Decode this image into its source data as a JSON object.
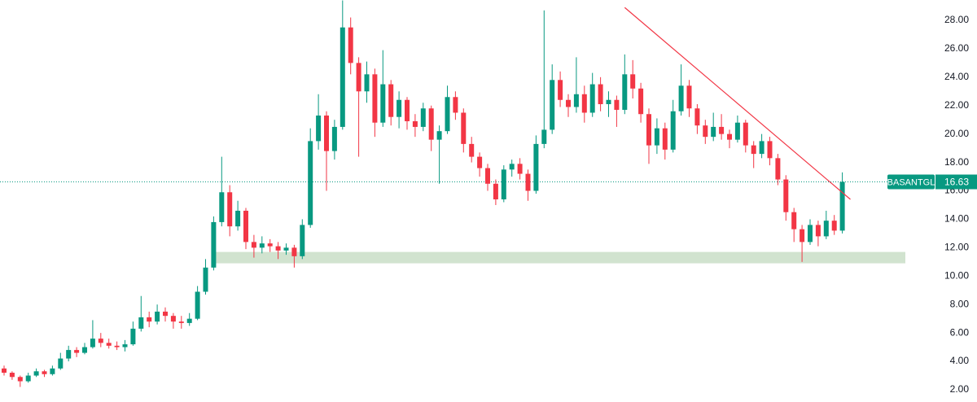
{
  "chart_data": {
    "type": "candlestick",
    "symbol": "BASANTGL",
    "last_price": 16.63,
    "up_color": "#089981",
    "down_color": "#f23645",
    "ylim": [
      1.14,
      29.43
    ],
    "yticks": [
      {
        "value": 2,
        "label": "2.00"
      },
      {
        "value": 4,
        "label": "4.00"
      },
      {
        "value": 6,
        "label": "6.00"
      },
      {
        "value": 8,
        "label": "8.00"
      },
      {
        "value": 10,
        "label": "10.00"
      },
      {
        "value": 12,
        "label": "12.00"
      },
      {
        "value": 14,
        "label": "14.00"
      },
      {
        "value": 16,
        "label": "16.00"
      },
      {
        "value": 18,
        "label": "18.00"
      },
      {
        "value": 20,
        "label": "20.00"
      },
      {
        "value": 22,
        "label": "22.00"
      },
      {
        "value": 24,
        "label": "24.00"
      },
      {
        "value": 26,
        "label": "26.00"
      },
      {
        "value": 28,
        "label": "28.00"
      }
    ],
    "ohlc": [
      [
        3.5,
        3.7,
        3.0,
        3.2
      ],
      [
        3.2,
        3.3,
        2.7,
        2.9
      ],
      [
        2.9,
        3.0,
        2.2,
        2.6
      ],
      [
        2.6,
        3.2,
        2.5,
        3.0
      ],
      [
        3.0,
        3.5,
        2.9,
        3.3
      ],
      [
        3.3,
        3.4,
        2.9,
        3.1
      ],
      [
        3.1,
        3.7,
        3.0,
        3.5
      ],
      [
        3.5,
        4.6,
        3.4,
        4.2
      ],
      [
        4.2,
        5.1,
        4.0,
        4.8
      ],
      [
        4.8,
        5.0,
        4.3,
        4.6
      ],
      [
        4.6,
        5.3,
        4.5,
        5.0
      ],
      [
        5.0,
        6.9,
        4.9,
        5.6
      ],
      [
        5.6,
        6.0,
        5.0,
        5.3
      ],
      [
        5.3,
        5.6,
        4.9,
        5.1
      ],
      [
        5.1,
        5.4,
        4.8,
        5.0
      ],
      [
        5.0,
        5.5,
        4.7,
        5.2
      ],
      [
        5.2,
        6.8,
        5.1,
        6.3
      ],
      [
        6.3,
        8.6,
        6.1,
        7.1
      ],
      [
        7.1,
        7.5,
        6.4,
        6.8
      ],
      [
        6.8,
        8.0,
        6.6,
        7.5
      ],
      [
        7.5,
        7.8,
        6.8,
        7.2
      ],
      [
        7.2,
        7.4,
        6.3,
        6.8
      ],
      [
        6.8,
        7.2,
        6.3,
        6.7
      ],
      [
        6.7,
        7.4,
        6.5,
        7.0
      ],
      [
        7.0,
        9.3,
        6.9,
        8.9
      ],
      [
        8.9,
        11.2,
        8.7,
        10.6
      ],
      [
        10.6,
        14.2,
        10.4,
        13.8
      ],
      [
        13.8,
        18.4,
        13.5,
        15.9
      ],
      [
        15.9,
        16.4,
        12.8,
        13.5
      ],
      [
        13.5,
        15.3,
        13.2,
        14.6
      ],
      [
        14.6,
        14.8,
        11.9,
        12.4
      ],
      [
        12.4,
        12.9,
        11.3,
        12.0
      ],
      [
        12.0,
        12.8,
        11.6,
        12.3
      ],
      [
        12.3,
        12.6,
        11.7,
        12.1
      ],
      [
        12.1,
        12.4,
        11.2,
        11.8
      ],
      [
        11.8,
        12.3,
        11.5,
        12.0
      ],
      [
        12.0,
        12.2,
        10.6,
        11.4
      ],
      [
        11.4,
        14.0,
        11.2,
        13.6
      ],
      [
        13.6,
        20.4,
        13.4,
        19.5
      ],
      [
        19.5,
        22.8,
        18.9,
        21.3
      ],
      [
        21.3,
        21.6,
        16.0,
        18.8
      ],
      [
        18.8,
        21.0,
        18.2,
        20.5
      ],
      [
        20.5,
        29.4,
        20.3,
        27.5
      ],
      [
        27.5,
        28.2,
        24.2,
        25.0
      ],
      [
        25.0,
        25.4,
        18.4,
        23.0
      ],
      [
        23.0,
        25.1,
        22.2,
        24.2
      ],
      [
        24.2,
        24.6,
        19.8,
        20.8
      ],
      [
        20.8,
        25.9,
        20.5,
        23.5
      ],
      [
        23.5,
        23.8,
        20.6,
        21.2
      ],
      [
        21.2,
        23.0,
        20.4,
        22.4
      ],
      [
        22.4,
        22.6,
        20.3,
        20.9
      ],
      [
        20.9,
        21.4,
        19.8,
        20.5
      ],
      [
        20.5,
        22.2,
        20.2,
        21.8
      ],
      [
        21.8,
        22.0,
        18.8,
        19.6
      ],
      [
        19.6,
        20.6,
        16.5,
        20.2
      ],
      [
        20.2,
        23.4,
        20.0,
        22.6
      ],
      [
        22.6,
        23.0,
        21.0,
        21.5
      ],
      [
        21.5,
        21.8,
        18.7,
        19.3
      ],
      [
        19.3,
        19.8,
        18.0,
        18.4
      ],
      [
        18.4,
        18.7,
        17.0,
        17.6
      ],
      [
        17.6,
        17.9,
        16.0,
        16.5
      ],
      [
        16.5,
        16.8,
        15.0,
        15.4
      ],
      [
        15.4,
        17.8,
        15.2,
        17.5
      ],
      [
        17.5,
        18.2,
        17.0,
        17.9
      ],
      [
        17.9,
        18.3,
        16.8,
        17.2
      ],
      [
        17.2,
        17.5,
        15.3,
        16.0
      ],
      [
        16.0,
        19.9,
        15.8,
        19.3
      ],
      [
        19.3,
        28.7,
        19.0,
        20.3
      ],
      [
        20.3,
        24.9,
        20.0,
        23.8
      ],
      [
        23.8,
        24.4,
        21.9,
        22.4
      ],
      [
        22.4,
        22.8,
        21.2,
        21.9
      ],
      [
        21.9,
        25.4,
        21.5,
        22.8
      ],
      [
        22.8,
        23.4,
        20.8,
        21.5
      ],
      [
        21.5,
        24.3,
        21.2,
        23.5
      ],
      [
        23.5,
        24.0,
        21.6,
        22.1
      ],
      [
        22.1,
        23.0,
        21.2,
        22.4
      ],
      [
        22.4,
        22.7,
        20.5,
        21.7
      ],
      [
        21.7,
        25.6,
        21.4,
        24.2
      ],
      [
        24.2,
        25.2,
        22.5,
        23.2
      ],
      [
        23.2,
        23.6,
        20.8,
        21.4
      ],
      [
        21.4,
        21.8,
        17.9,
        19.2
      ],
      [
        19.2,
        21.1,
        18.6,
        20.4
      ],
      [
        20.4,
        20.8,
        18.2,
        18.9
      ],
      [
        18.9,
        22.4,
        18.7,
        21.6
      ],
      [
        21.6,
        24.9,
        21.3,
        23.4
      ],
      [
        23.4,
        23.8,
        21.2,
        21.8
      ],
      [
        21.8,
        22.1,
        20.0,
        20.6
      ],
      [
        20.6,
        21.0,
        19.3,
        19.8
      ],
      [
        19.8,
        21.5,
        19.5,
        20.5
      ],
      [
        20.5,
        21.4,
        19.6,
        20.0
      ],
      [
        20.0,
        20.3,
        19.0,
        19.6
      ],
      [
        19.6,
        21.3,
        19.4,
        20.8
      ],
      [
        20.8,
        21.0,
        18.7,
        19.2
      ],
      [
        19.2,
        19.5,
        17.6,
        18.6
      ],
      [
        18.6,
        20.0,
        18.3,
        19.5
      ],
      [
        19.5,
        19.8,
        17.8,
        18.3
      ],
      [
        18.3,
        18.6,
        16.4,
        16.8
      ],
      [
        16.8,
        17.1,
        13.9,
        14.5
      ],
      [
        14.5,
        14.8,
        12.4,
        13.3
      ],
      [
        13.3,
        13.6,
        11.0,
        12.4
      ],
      [
        12.4,
        14.0,
        12.2,
        13.6
      ],
      [
        13.6,
        13.9,
        12.1,
        12.8
      ],
      [
        12.8,
        14.6,
        12.6,
        13.9
      ],
      [
        13.9,
        14.3,
        12.9,
        13.2
      ],
      [
        13.2,
        17.3,
        13.0,
        16.63
      ]
    ],
    "trendline": {
      "color": "#f23645",
      "from": [
        77,
        28.9
      ],
      "to": [
        105,
        15.4
      ]
    },
    "zone": {
      "color": "#d1e3cf",
      "from": 26,
      "low": 10.9,
      "high": 11.7
    }
  }
}
